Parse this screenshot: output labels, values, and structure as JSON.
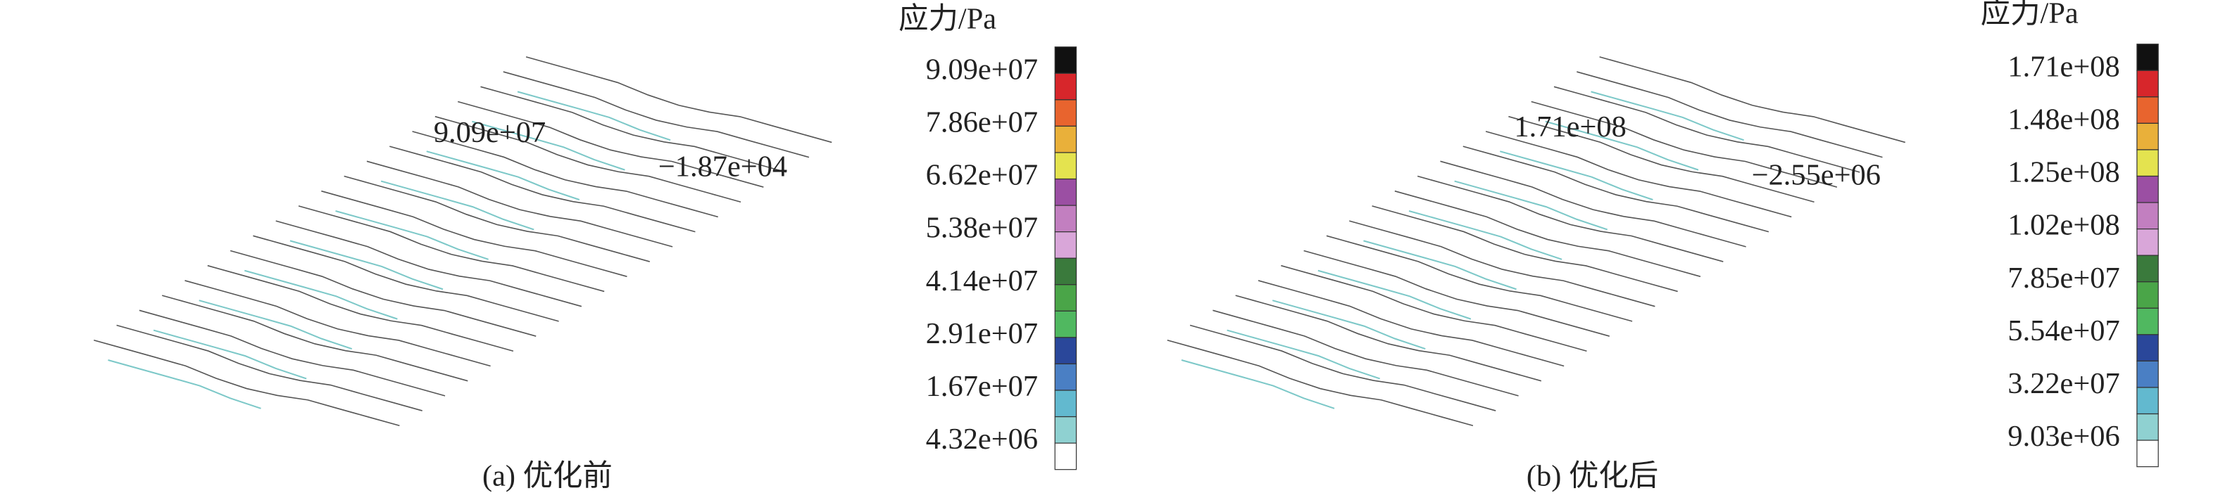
{
  "panels": [
    {
      "caption": "(a) 优化前",
      "legend_title": "应力/Pa",
      "legend_labels": [
        "9.09e+07",
        "7.86e+07",
        "6.62e+07",
        "5.38e+07",
        "4.14e+07",
        "2.91e+07",
        "1.67e+07",
        "4.32e+06"
      ],
      "max_label": "9.09e+07",
      "min_label": "−1.87e+04"
    },
    {
      "caption": "(b) 优化后",
      "legend_title": "应力/Pa",
      "legend_labels": [
        "1.71e+08",
        "1.48e+08",
        "1.25e+08",
        "1.02e+08",
        "7.85e+07",
        "5.54e+07",
        "3.22e+07",
        "9.03e+06"
      ],
      "max_label": "1.71e+08",
      "min_label": "−2.55e+06"
    }
  ],
  "colorbar_colors": [
    "#111111",
    "#d7262b",
    "#e8642e",
    "#e9b03a",
    "#e4e34f",
    "#9b4fa3",
    "#c27fc0",
    "#d9a6d9",
    "#3a7a3c",
    "#4aa548",
    "#50b860",
    "#2a479a",
    "#4a7fc4",
    "#62b9cf",
    "#8fd1d1",
    "#ffffff"
  ]
}
